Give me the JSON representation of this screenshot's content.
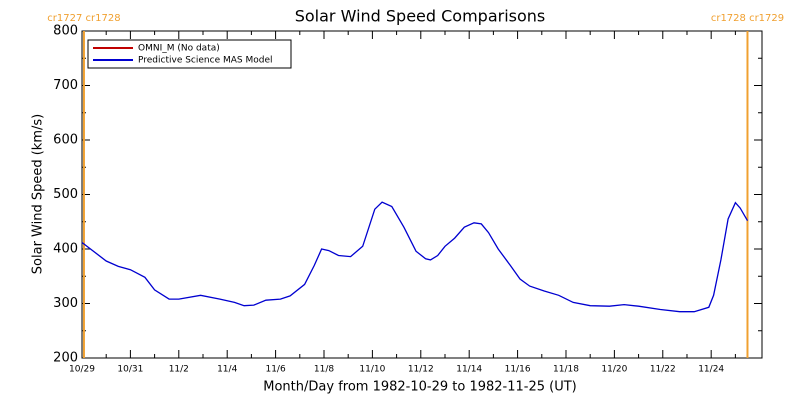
{
  "chart_data": {
    "type": "line",
    "title": "Solar Wind Speed Comparisons",
    "x_label": "Month/Day from 1982-10-29 to 1982-11-25 (UT)",
    "y_label": "Solar Wind Speed (km/s)",
    "xlim": [
      0,
      28.1
    ],
    "ylim": [
      200,
      800
    ],
    "xticks": [
      {
        "value": 0,
        "label": "10/29"
      },
      {
        "value": 2,
        "label": "10/31"
      },
      {
        "value": 4,
        "label": "11/2"
      },
      {
        "value": 6,
        "label": "11/4"
      },
      {
        "value": 8,
        "label": "11/6"
      },
      {
        "value": 10,
        "label": "11/8"
      },
      {
        "value": 12,
        "label": "11/10"
      },
      {
        "value": 14,
        "label": "11/12"
      },
      {
        "value": 16,
        "label": "11/14"
      },
      {
        "value": 18,
        "label": "11/16"
      },
      {
        "value": 20,
        "label": "11/18"
      },
      {
        "value": 22,
        "label": "11/20"
      },
      {
        "value": 24,
        "label": "11/22"
      },
      {
        "value": 26,
        "label": "11/24"
      }
    ],
    "x_minor_ticks": [
      1,
      3,
      5,
      7,
      9,
      11,
      13,
      15,
      17,
      19,
      21,
      23,
      25,
      27
    ],
    "yticks": [
      200,
      300,
      400,
      500,
      600,
      700,
      800
    ],
    "y_minor_ticks": [
      250,
      350,
      450,
      550,
      650,
      750
    ],
    "markers": [
      {
        "x": 0.08,
        "label": "cr1727 cr1728",
        "color": "#f0a030"
      },
      {
        "x": 27.5,
        "label": "cr1728 cr1729",
        "color": "#f0a030"
      }
    ],
    "x": [
      0,
      1.0,
      1.5,
      2.0,
      2.6,
      3.0,
      3.6,
      4.0,
      4.9,
      5.7,
      6.3,
      6.7,
      7.1,
      7.6,
      8.2,
      8.6,
      9.2,
      9.6,
      9.9,
      10.2,
      10.6,
      11.1,
      11.6,
      12.1,
      12.4,
      12.8,
      13.3,
      13.8,
      14.2,
      14.4,
      14.7,
      15.0,
      15.4,
      15.8,
      16.2,
      16.5,
      16.8,
      17.2,
      17.7,
      18.1,
      18.5,
      19.1,
      19.7,
      20.3,
      21.0,
      21.8,
      22.4,
      23.0,
      23.9,
      24.7,
      25.3,
      25.9,
      26.1,
      26.4,
      26.7,
      27.0,
      27.2,
      27.5
    ],
    "series": [
      {
        "name": "OMNI_M (No data)",
        "color": "#c00000",
        "values": [
          null,
          null,
          null,
          null,
          null,
          null,
          null,
          null,
          null,
          null,
          null,
          null,
          null,
          null,
          null,
          null,
          null,
          null,
          null,
          null,
          null,
          null,
          null,
          null,
          null,
          null,
          null,
          null,
          null,
          null,
          null,
          null,
          null,
          null,
          null,
          null,
          null,
          null,
          null,
          null,
          null,
          null,
          null,
          null,
          null,
          null,
          null,
          null,
          null,
          null,
          null,
          null,
          null,
          null,
          null,
          null,
          null,
          null
        ]
      },
      {
        "name": "Predictive Science MAS Model",
        "color": "#0000d0",
        "values": [
          412,
          378,
          368,
          362,
          348,
          325,
          308,
          308,
          315,
          308,
          302,
          296,
          297,
          306,
          308,
          314,
          335,
          370,
          400,
          397,
          388,
          386,
          405,
          473,
          486,
          478,
          440,
          396,
          382,
          380,
          388,
          405,
          420,
          440,
          448,
          446,
          430,
          400,
          370,
          345,
          332,
          323,
          315,
          302,
          296,
          295,
          298,
          295,
          289,
          285,
          285,
          293,
          315,
          380,
          455,
          485,
          475,
          452
        ]
      }
    ]
  }
}
